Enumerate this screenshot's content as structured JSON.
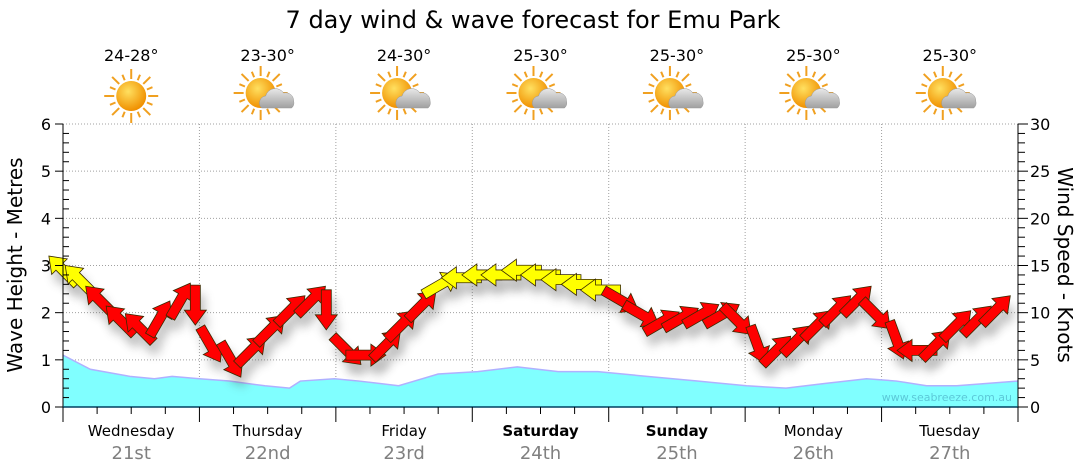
{
  "chart_data": {
    "type": "area",
    "title": "7 day wind & wave forecast for Emu Park",
    "ylabel_left": "Wave Height - Metres",
    "ylabel_right": "Wind Speed - Knots",
    "ylim_left": [
      0,
      6
    ],
    "ylim_right": [
      0,
      30
    ],
    "yticks_left": [
      "0",
      "1",
      "2",
      "3",
      "4",
      "5",
      "6"
    ],
    "yticks_right": [
      "0",
      "5",
      "10",
      "15",
      "20",
      "25",
      "30"
    ],
    "grid": true,
    "watermark": "www.seabreeze.com.au",
    "days": [
      {
        "name": "Wednesday",
        "date": "21st",
        "bold": false,
        "temp": "24-28°",
        "icon": "sunny"
      },
      {
        "name": "Thursday",
        "date": "22nd",
        "bold": false,
        "temp": "23-30°",
        "icon": "partly-cloudy"
      },
      {
        "name": "Friday",
        "date": "23rd",
        "bold": false,
        "temp": "24-30°",
        "icon": "partly-cloudy"
      },
      {
        "name": "Saturday",
        "date": "24th",
        "bold": true,
        "temp": "25-30°",
        "icon": "partly-cloudy"
      },
      {
        "name": "Sunday",
        "date": "25th",
        "bold": true,
        "temp": "25-30°",
        "icon": "partly-cloudy"
      },
      {
        "name": "Monday",
        "date": "26th",
        "bold": false,
        "temp": "25-30°",
        "icon": "partly-cloudy"
      },
      {
        "name": "Tuesday",
        "date": "27th",
        "bold": false,
        "temp": "25-30°",
        "icon": "partly-cloudy"
      }
    ],
    "wave_series": {
      "name": "Wave Height (m)",
      "day_offset": [
        0,
        0.2,
        0.49,
        0.67,
        0.8,
        1.0,
        1.22,
        1.48,
        1.66,
        1.74,
        1.99,
        2.17,
        2.46,
        2.75,
        3.04,
        3.33,
        3.63,
        3.92,
        4.28,
        4.65,
        5.01,
        5.3,
        5.59,
        5.89,
        6.11,
        6.33,
        6.55,
        7.0
      ],
      "values": [
        1.1,
        0.8,
        0.65,
        0.6,
        0.65,
        0.6,
        0.55,
        0.45,
        0.4,
        0.55,
        0.6,
        0.55,
        0.45,
        0.7,
        0.75,
        0.85,
        0.75,
        0.75,
        0.65,
        0.55,
        0.45,
        0.4,
        0.5,
        0.6,
        0.55,
        0.45,
        0.45,
        0.55
      ]
    },
    "wind_series": {
      "name": "Wind Speed (knots)",
      "day_offset": [
        0,
        0.12,
        0.27,
        0.42,
        0.56,
        0.71,
        0.86,
        0.97,
        1.08,
        1.23,
        1.38,
        1.52,
        1.67,
        1.82,
        1.93,
        2.08,
        2.22,
        2.37,
        2.48,
        2.63,
        2.77,
        2.92,
        3.07,
        3.21,
        3.36,
        3.5,
        3.65,
        3.8,
        3.94,
        4.09,
        4.24,
        4.39,
        4.53,
        4.68,
        4.83,
        4.94,
        5.09,
        5.23,
        5.38,
        5.53,
        5.67,
        5.82,
        5.96,
        6.11,
        6.26,
        6.4,
        6.55,
        6.7,
        6.84
      ],
      "values": [
        14.5,
        13.5,
        11.3,
        9.2,
        8.4,
        9.4,
        11.3,
        10.8,
        6.6,
        5,
        6,
        8.2,
        10.3,
        11.3,
        10.3,
        6,
        5.5,
        6.6,
        8.7,
        10.8,
        13,
        13.7,
        14,
        14,
        14.5,
        14,
        13.5,
        13,
        12.4,
        11.3,
        9.8,
        9,
        9.4,
        9.8,
        9.8,
        9.2,
        6.6,
        6,
        7.1,
        8.7,
        10.3,
        11.3,
        9.8,
        7.1,
        6,
        6.6,
        8.7,
        9.2,
        10.3
      ],
      "arrow_bearing_deg": [
        315,
        315,
        315,
        315,
        315,
        30,
        30,
        180,
        150,
        150,
        45,
        45,
        45,
        45,
        180,
        135,
        90,
        45,
        45,
        45,
        60,
        270,
        270,
        270,
        270,
        270,
        270,
        270,
        270,
        120,
        120,
        60,
        60,
        60,
        60,
        135,
        160,
        45,
        45,
        45,
        45,
        45,
        135,
        160,
        270,
        45,
        45,
        45,
        45
      ],
      "yellow_threshold_knots": 12,
      "colors": {
        "strong": "#ffff00",
        "normal": "#ff0000"
      }
    },
    "colors": {
      "wave_fill": "#80ffff",
      "wave_line": "#b0b0ff",
      "axis": "#000000",
      "grid": "#a0a0a0",
      "date_text": "#808080"
    }
  }
}
